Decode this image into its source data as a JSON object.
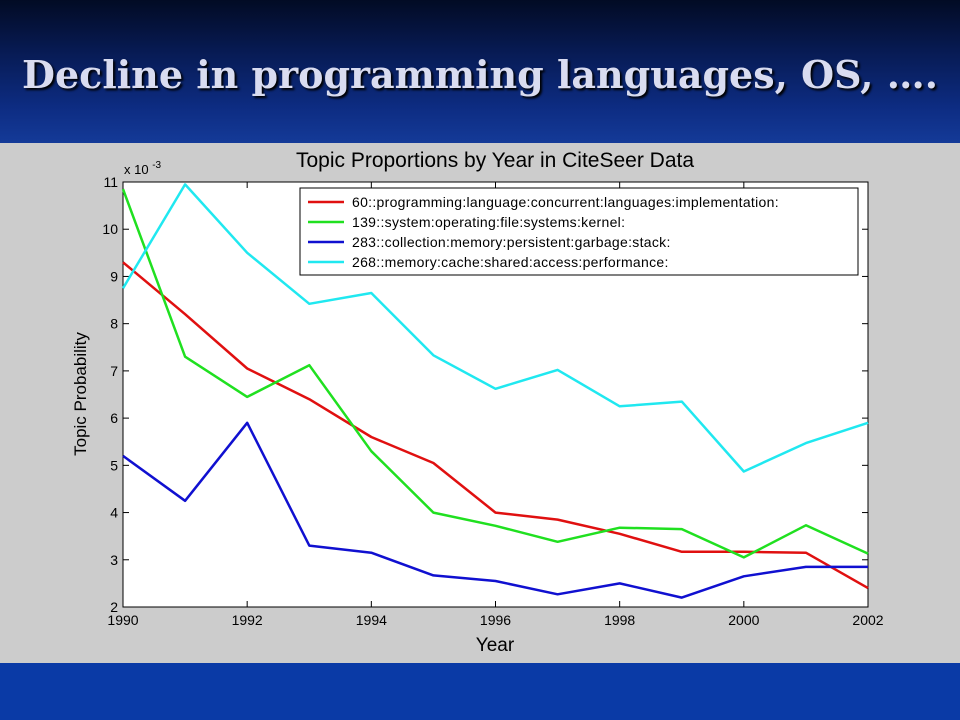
{
  "slide": {
    "title": "Decline in programming languages, OS, …."
  },
  "colors": {
    "header_bg": "#0b1f5c",
    "figure_bg": "#cccccc",
    "footer_bg": "#0a3aa6",
    "title_text": "#d9dcf0"
  },
  "chart_data": {
    "type": "line",
    "title": "Topic Proportions by Year in CiteSeer Data",
    "xlabel": "Year",
    "ylabel": "Topic Probability",
    "y_exponent_label": "x 10",
    "y_exponent_power": "-3",
    "xlim": [
      1990,
      2002
    ],
    "ylim": [
      2,
      11
    ],
    "x_ticks": [
      1990,
      1992,
      1994,
      1996,
      1998,
      2000,
      2002
    ],
    "y_ticks": [
      2,
      3,
      4,
      5,
      6,
      7,
      8,
      9,
      10,
      11
    ],
    "grid": false,
    "legend_position": "top-right",
    "x": [
      1990,
      1991,
      1992,
      1993,
      1994,
      1995,
      1996,
      1997,
      1998,
      1999,
      2000,
      2001,
      2002
    ],
    "series": [
      {
        "name": "60::programming:language:concurrent:languages:implementation:",
        "color": "#e01010",
        "values": [
          9.3,
          8.2,
          7.05,
          6.4,
          5.6,
          5.05,
          4.0,
          3.85,
          3.55,
          3.17,
          3.17,
          3.15,
          2.4
        ]
      },
      {
        "name": "139::system:operating:file:systems:kernel:",
        "color": "#20e020",
        "values": [
          10.85,
          7.3,
          6.45,
          7.12,
          5.3,
          4.0,
          3.72,
          3.38,
          3.68,
          3.65,
          3.05,
          3.73,
          3.13
        ]
      },
      {
        "name": "283::collection:memory:persistent:garbage:stack:",
        "color": "#1010d0",
        "values": [
          5.2,
          4.25,
          5.9,
          3.3,
          3.15,
          2.67,
          2.55,
          2.27,
          2.5,
          2.2,
          2.65,
          2.85,
          2.85
        ]
      },
      {
        "name": "268::memory:cache:shared:access:performance:",
        "color": "#20e8f0",
        "values": [
          8.75,
          10.95,
          9.5,
          8.42,
          8.65,
          7.33,
          6.62,
          7.02,
          6.25,
          6.35,
          4.87,
          5.47,
          5.9
        ]
      }
    ]
  }
}
